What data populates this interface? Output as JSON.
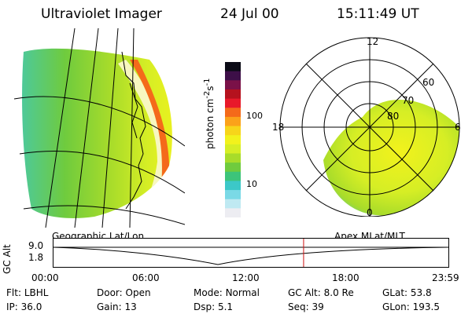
{
  "header": {
    "instrument": "Ultraviolet Imager",
    "date": "24 Jul 00",
    "time": "15:11:49 UT"
  },
  "geo_panel": {
    "label": "Geographic Lat/Lon"
  },
  "polar_panel": {
    "label": "Apex MLat/MLT",
    "mlt_labels": [
      "12",
      "18",
      "6",
      "0"
    ],
    "lat_labels": [
      "60",
      "70",
      "80"
    ]
  },
  "colorbar": {
    "label_main": "photon cm",
    "label_exp1": "-2",
    "label_mid": "s",
    "label_exp2": "-1",
    "ticks": [
      "100",
      "10"
    ],
    "colors": [
      "#0b0b16",
      "#3d0f48",
      "#7a1148",
      "#b5121e",
      "#e8192a",
      "#f46a1a",
      "#fba21a",
      "#f7d51a",
      "#f2f21c",
      "#d6ee25",
      "#a8dc2a",
      "#6fcb3e",
      "#3dc47a",
      "#3cc8c8",
      "#7ad9e6",
      "#bfe9f2",
      "#ededf2"
    ]
  },
  "timeline": {
    "ylabel": "GC Alt",
    "ymax": "9.0",
    "ymin": "1.8",
    "ticks": [
      "00:00",
      "06:00",
      "12:00",
      "18:00",
      "23:59"
    ],
    "current_time_hours": 15.2
  },
  "info": {
    "flt_label": "Flt:",
    "flt_value": "LBHL",
    "ip_label": "IP:",
    "ip_value": "36.0",
    "door_label": "Door:",
    "door_value": "Open",
    "gain_label": "Gain:",
    "gain_value": "13",
    "mode_label": "Mode:",
    "mode_value": "Normal",
    "dsp_label": "Dsp:",
    "dsp_value": "5.1",
    "gcalt_label": "GC Alt:",
    "gcalt_value": "8.0 Re",
    "seq_label": "Seq:",
    "seq_value": "39",
    "glat_label": "GLat:",
    "glat_value": "53.8",
    "glon_label": "GLon:",
    "glon_value": "193.5"
  }
}
